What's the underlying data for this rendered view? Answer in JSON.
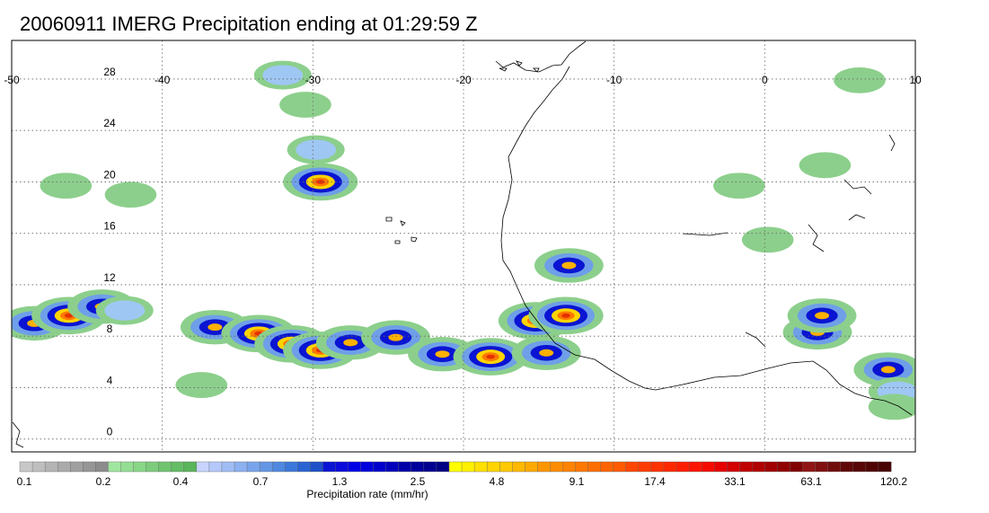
{
  "title": "20060911 IMERG Precipitation ending at 01:29:59 Z",
  "map": {
    "lon_range": [
      -50,
      10
    ],
    "lat_range": [
      -1,
      31
    ],
    "lon_ticks": [
      "-50",
      "-40",
      "-30",
      "-20",
      "-10",
      "0",
      "10"
    ],
    "lat_ticks": [
      "0",
      "4",
      "8",
      "12",
      "16",
      "20",
      "24",
      "28"
    ],
    "grid": "dotted",
    "coastline_color": "#000000"
  },
  "colorbar": {
    "title": "Precipitation rate (mm/hr)",
    "tick_labels": [
      "0.1",
      "0.2",
      "0.4",
      "0.7",
      "1.3",
      "2.5",
      "4.8",
      "9.1",
      "17.4",
      "33.1",
      "63.1",
      "120.2"
    ],
    "colors": [
      "#c8c8c8",
      "#bebebe",
      "#b4b4b4",
      "#aaaaaa",
      "#a0a0a0",
      "#969696",
      "#8c8c8c",
      "#a0e6a0",
      "#94de94",
      "#88d688",
      "#7ccc7c",
      "#70c470",
      "#64bc64",
      "#5ab45a",
      "#c8d4ff",
      "#b4c8fa",
      "#a0bcf5",
      "#8cb0f0",
      "#78a4eb",
      "#6496e6",
      "#5088e0",
      "#3c78da",
      "#2a64d2",
      "#1e50c8",
      "#0a14d2",
      "#0a0adc",
      "#0000e6",
      "#0000dc",
      "#0000cc",
      "#0000bc",
      "#0000aa",
      "#00009c",
      "#000090",
      "#000084",
      "#ffff00",
      "#fff000",
      "#ffe000",
      "#ffd400",
      "#ffc800",
      "#ffb800",
      "#ffaa00",
      "#ff9600",
      "#ff8c00",
      "#ff8200",
      "#ff7800",
      "#ff6e00",
      "#ff6400",
      "#ff5a00",
      "#ff4600",
      "#ff3c00",
      "#ff3200",
      "#ff2800",
      "#ff1e00",
      "#ff1400",
      "#f50a00",
      "#e60000",
      "#d20000",
      "#c00000",
      "#b00000",
      "#a00000",
      "#900000",
      "#800000",
      "#901414",
      "#801010",
      "#700c0c",
      "#600808",
      "#580606",
      "#500404",
      "#480202"
    ]
  },
  "precip_cells": [
    {
      "lon": -48.5,
      "lat": 9.0,
      "level": 3
    },
    {
      "lon": -46.2,
      "lat": 9.6,
      "level": 4
    },
    {
      "lon": -44.0,
      "lat": 10.3,
      "level": 3
    },
    {
      "lon": -42.5,
      "lat": 10.0,
      "level": 2
    },
    {
      "lon": -36.5,
      "lat": 8.7,
      "level": 3
    },
    {
      "lon": -33.6,
      "lat": 8.2,
      "level": 4
    },
    {
      "lon": -31.4,
      "lat": 7.4,
      "level": 4
    },
    {
      "lon": -29.5,
      "lat": 6.9,
      "level": 4
    },
    {
      "lon": -27.5,
      "lat": 7.5,
      "level": 3
    },
    {
      "lon": -24.5,
      "lat": 7.9,
      "level": 3
    },
    {
      "lon": -21.4,
      "lat": 6.6,
      "level": 3
    },
    {
      "lon": -18.2,
      "lat": 6.4,
      "level": 4
    },
    {
      "lon": -15.2,
      "lat": 9.2,
      "level": 4
    },
    {
      "lon": -13.2,
      "lat": 9.6,
      "level": 4
    },
    {
      "lon": -14.5,
      "lat": 6.7,
      "level": 3
    },
    {
      "lon": -13.0,
      "lat": 13.5,
      "level": 3
    },
    {
      "lon": -29.5,
      "lat": 20.0,
      "level": 4
    },
    {
      "lon": -29.8,
      "lat": 22.5,
      "level": 2
    },
    {
      "lon": -32.0,
      "lat": 28.3,
      "level": 2
    },
    {
      "lon": -30.5,
      "lat": 26.0,
      "level": 1
    },
    {
      "lon": 3.5,
      "lat": 8.3,
      "level": 3
    },
    {
      "lon": 3.8,
      "lat": 9.6,
      "level": 3
    },
    {
      "lon": 8.2,
      "lat": 5.4,
      "level": 3
    },
    {
      "lon": 8.8,
      "lat": 3.7,
      "level": 2
    },
    {
      "lon": 0.2,
      "lat": 15.5,
      "level": 1
    },
    {
      "lon": -1.7,
      "lat": 19.7,
      "level": 1
    },
    {
      "lon": 4.0,
      "lat": 21.3,
      "level": 1
    },
    {
      "lon": -46.4,
      "lat": 19.7,
      "level": 1
    },
    {
      "lon": -42.1,
      "lat": 19.0,
      "level": 1
    },
    {
      "lon": -37.4,
      "lat": 4.2,
      "level": 1
    },
    {
      "lon": 6.3,
      "lat": 27.9,
      "level": 1
    },
    {
      "lon": 8.6,
      "lat": 2.5,
      "level": 1
    }
  ]
}
